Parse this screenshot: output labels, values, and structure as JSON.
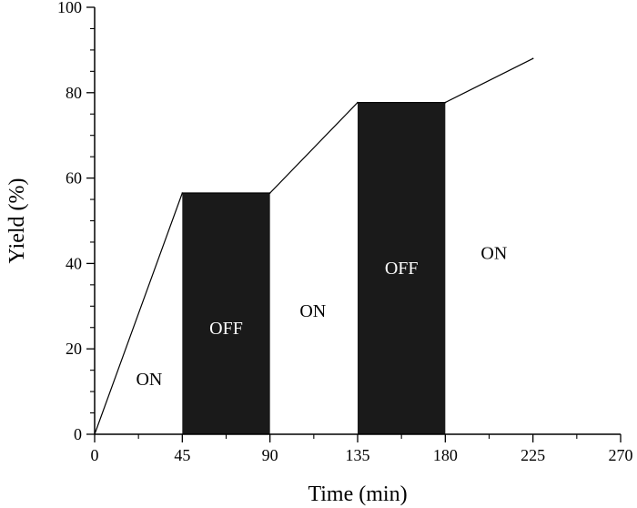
{
  "chart_data": {
    "type": "line",
    "title": "",
    "xlabel": "Time (min)",
    "ylabel": "Yield (%)",
    "xlim": [
      0,
      270
    ],
    "ylim": [
      0,
      100
    ],
    "x_ticks": [
      0,
      45,
      90,
      135,
      180,
      225,
      270
    ],
    "y_ticks": [
      0,
      20,
      40,
      60,
      80,
      100
    ],
    "series": [
      {
        "name": "Yield",
        "x": [
          0,
          45,
          90,
          135,
          180,
          225
        ],
        "y": [
          0,
          56.5,
          56.5,
          77.7,
          77.7,
          88.0
        ]
      }
    ],
    "shaded_regions": [
      {
        "label": "OFF",
        "x_start": 45,
        "x_end": 90,
        "y_top": 56.5,
        "color": "#1a1a1a",
        "label_color": "#ffffff",
        "label_y": 25
      },
      {
        "label": "OFF",
        "x_start": 135,
        "x_end": 180,
        "y_top": 77.7,
        "color": "#1a1a1a",
        "label_color": "#ffffff",
        "label_y": 39
      }
    ],
    "annotations": [
      {
        "text": "ON",
        "x": 28,
        "y": 13
      },
      {
        "text": "ON",
        "x": 112,
        "y": 29
      },
      {
        "text": "ON",
        "x": 205,
        "y": 42.5
      }
    ]
  }
}
